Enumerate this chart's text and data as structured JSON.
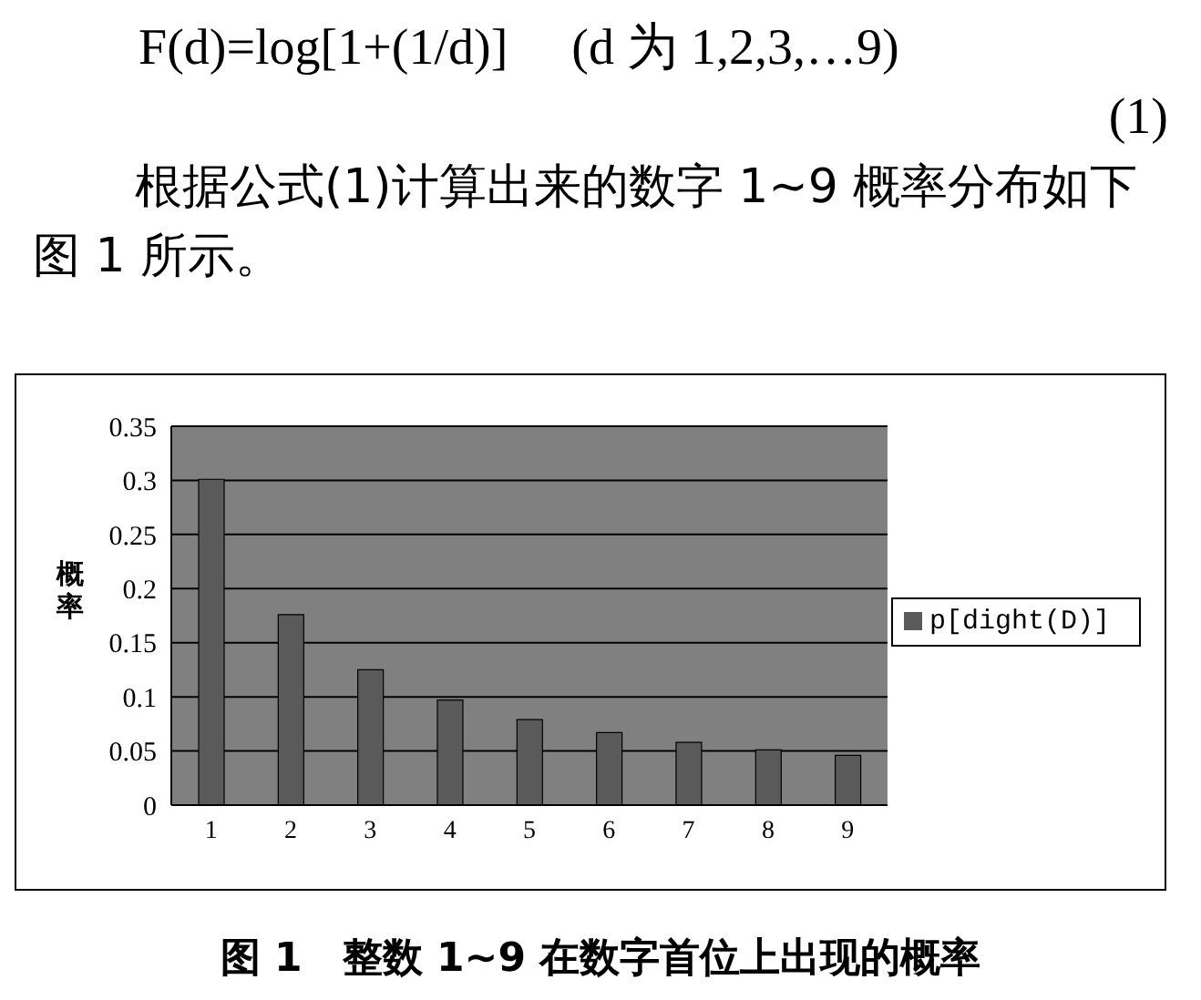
{
  "chart_data": {
    "type": "bar",
    "ylabel": "概率",
    "annotations": [
      "F(d)=log[1+(1/d)]　 (d 为 1,2,3,…9)",
      "(1)",
      "根据公式(1)计算出来的数字 1~9 概率分布如下图 1 所示。",
      "图 1　整数 1~9 在数字首位上出现的概率"
    ],
    "categories": [
      "1",
      "2",
      "3",
      "4",
      "5",
      "6",
      "7",
      "8",
      "9"
    ],
    "series": [
      {
        "name": "p[dight(D)]",
        "color": "#5a5a5a",
        "values": [
          0.301,
          0.176,
          0.125,
          0.097,
          0.079,
          0.067,
          0.058,
          0.051,
          0.046
        ]
      }
    ],
    "ylim": [
      0,
      0.35
    ],
    "yticks": [
      0,
      0.05,
      0.1,
      0.15,
      0.2,
      0.25,
      0.3,
      0.35
    ],
    "grid": "y",
    "legend": "right"
  }
}
